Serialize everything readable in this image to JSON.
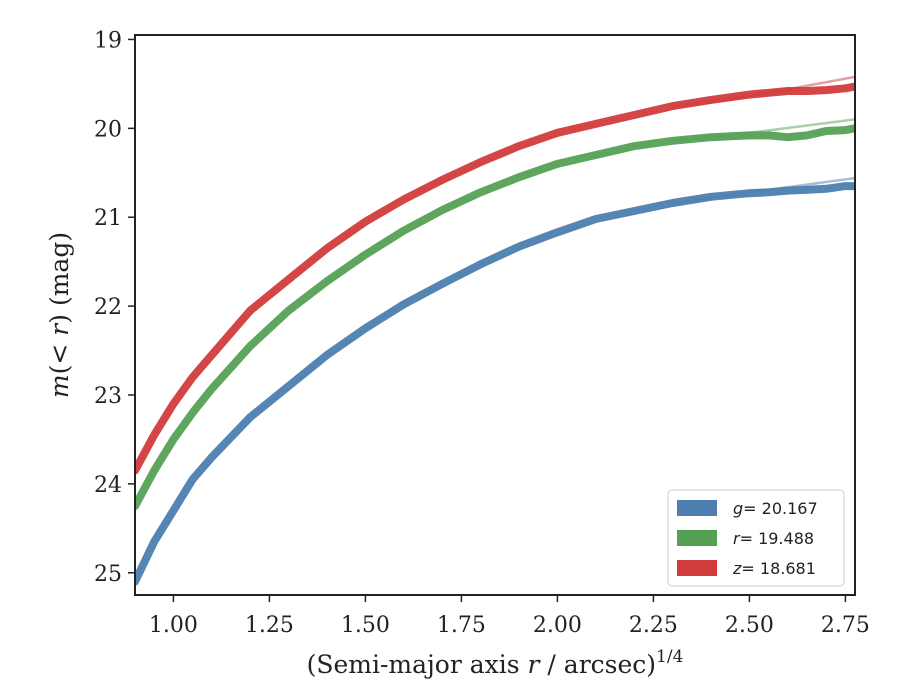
{
  "chart_data": {
    "type": "line",
    "xlabel": "(Semi-major axis r / arcsec)^1/4",
    "xlabel_parts": {
      "prefix": "(Semi-major axis ",
      "var": "r",
      "mid": " / arcsec)",
      "sup": "1/4"
    },
    "ylabel": "m(< r) (mag)",
    "ylabel_parts": {
      "m": "m",
      "open": "(",
      "lt": "< ",
      "r": "r",
      "close": ")",
      "unit": " (mag)"
    },
    "xlim": [
      0.9,
      2.775
    ],
    "ylim": [
      25.25,
      18.95
    ],
    "y_inverted": true,
    "x_ticks": [
      1.0,
      1.25,
      1.5,
      1.75,
      2.0,
      2.25,
      2.5,
      2.75
    ],
    "x_tick_labels": [
      "1.00",
      "1.25",
      "1.50",
      "1.75",
      "2.00",
      "2.25",
      "2.50",
      "2.75"
    ],
    "y_ticks": [
      19,
      20,
      21,
      22,
      23,
      24,
      25
    ],
    "y_tick_labels": [
      "19",
      "20",
      "21",
      "22",
      "23",
      "24",
      "25"
    ],
    "grid": false,
    "legend_position": "bottom-right",
    "series": [
      {
        "name": "g = 20.167",
        "legend_var": "g",
        "legend_value": "= 20.167",
        "color": "#4c7faf",
        "x": [
          0.9,
          0.95,
          1.0,
          1.05,
          1.1,
          1.2,
          1.3,
          1.4,
          1.5,
          1.6,
          1.7,
          1.8,
          1.9,
          2.0,
          2.1,
          2.2,
          2.3,
          2.4,
          2.5,
          2.55,
          2.6,
          2.65,
          2.7,
          2.75,
          2.775
        ],
        "values": [
          25.1,
          24.65,
          24.3,
          23.95,
          23.7,
          23.25,
          22.9,
          22.55,
          22.25,
          21.98,
          21.75,
          21.53,
          21.33,
          21.17,
          21.02,
          20.93,
          20.84,
          20.77,
          20.73,
          20.72,
          20.7,
          20.69,
          20.68,
          20.65,
          20.65
        ],
        "model_x": [
          2.3,
          2.5,
          2.775
        ],
        "model_values": [
          20.84,
          20.72,
          20.56
        ]
      },
      {
        "name": "r = 19.488",
        "legend_var": "r",
        "legend_value": "= 19.488",
        "color": "#55a055",
        "x": [
          0.9,
          0.95,
          1.0,
          1.05,
          1.1,
          1.2,
          1.3,
          1.4,
          1.5,
          1.6,
          1.7,
          1.8,
          1.9,
          2.0,
          2.1,
          2.2,
          2.3,
          2.4,
          2.5,
          2.55,
          2.6,
          2.65,
          2.7,
          2.75,
          2.775
        ],
        "values": [
          24.25,
          23.85,
          23.5,
          23.2,
          22.93,
          22.45,
          22.05,
          21.72,
          21.42,
          21.15,
          20.92,
          20.72,
          20.55,
          20.4,
          20.3,
          20.2,
          20.14,
          20.1,
          20.08,
          20.08,
          20.1,
          20.08,
          20.03,
          20.02,
          20.0
        ],
        "model_x": [
          2.3,
          2.5,
          2.775
        ],
        "model_values": [
          20.14,
          20.05,
          19.9
        ]
      },
      {
        "name": "z = 18.681",
        "legend_var": "z",
        "legend_value": "= 18.681",
        "color": "#d23b3b",
        "x": [
          0.9,
          0.95,
          1.0,
          1.05,
          1.1,
          1.2,
          1.3,
          1.4,
          1.5,
          1.6,
          1.7,
          1.8,
          1.9,
          2.0,
          2.1,
          2.2,
          2.3,
          2.4,
          2.5,
          2.55,
          2.6,
          2.65,
          2.7,
          2.75,
          2.775
        ],
        "values": [
          23.85,
          23.45,
          23.1,
          22.8,
          22.55,
          22.05,
          21.7,
          21.35,
          21.05,
          20.8,
          20.58,
          20.38,
          20.2,
          20.05,
          19.95,
          19.85,
          19.75,
          19.68,
          19.62,
          19.6,
          19.58,
          19.58,
          19.57,
          19.55,
          19.53
        ],
        "model_x": [
          2.3,
          2.5,
          2.775
        ],
        "model_values": [
          19.75,
          19.64,
          19.42
        ]
      }
    ]
  }
}
